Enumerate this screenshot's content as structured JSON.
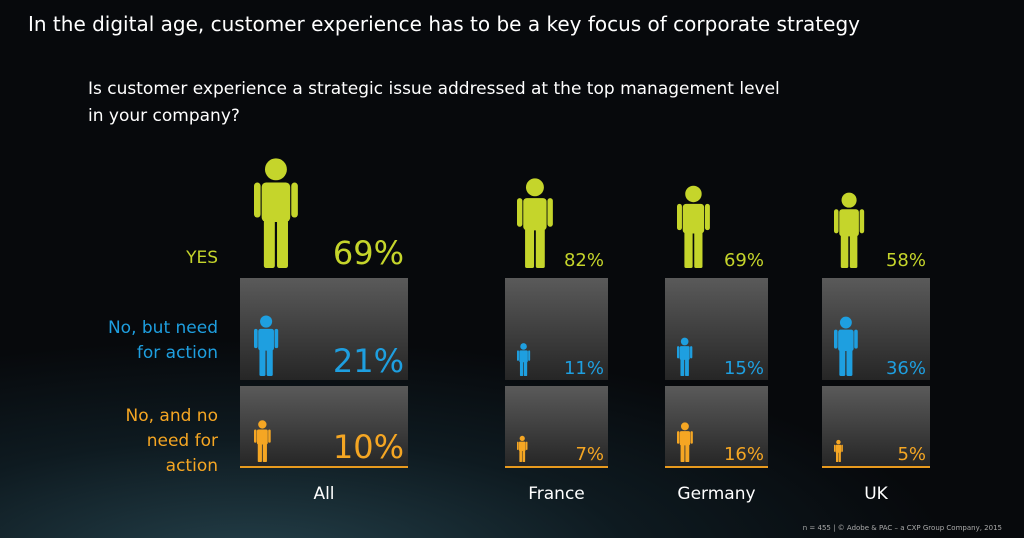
{
  "chart_data": {
    "type": "pictogram",
    "title": "In the digital age, customer experience has to be a key focus of corporate strategy",
    "subtitle": "Is customer experience a strategic issue addressed at the top management level in your company?",
    "categories": [
      "All",
      "France",
      "Germany",
      "UK"
    ],
    "series": [
      {
        "name": "YES",
        "color": "#c5d52b",
        "values": [
          69,
          82,
          69,
          58
        ],
        "value_labels": [
          "69%",
          "82%",
          "69%",
          "58%"
        ]
      },
      {
        "name": "No, but need for action",
        "color": "#1e9fe0",
        "values": [
          21,
          11,
          15,
          36
        ],
        "value_labels": [
          "21%",
          "11%",
          "15%",
          "36%"
        ]
      },
      {
        "name": "No, and no need for action",
        "color": "#f5a623",
        "values": [
          10,
          7,
          16,
          5
        ],
        "value_labels": [
          "10%",
          "7%",
          "16%",
          "5%"
        ]
      }
    ],
    "footnote": "n = 455 | © Adobe & PAC – a CXP Group Company, 2015"
  }
}
